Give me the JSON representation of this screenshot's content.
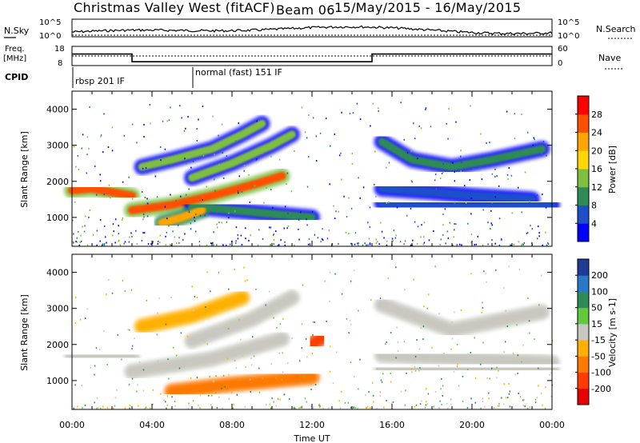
{
  "header": {
    "station": "Christmas Valley West (fitACF)",
    "beam": "Beam 06",
    "date_range": "15/May/2015 - 16/May/2015"
  },
  "left_labels": {
    "nsky": "N.Sky",
    "freq_line1": "Freq.",
    "freq_line2": "[MHz]",
    "cpid": "CPID"
  },
  "right_labels": {
    "nsearch": "N.Search",
    "nave": "Nave"
  },
  "noise_axis": {
    "left_ticks": [
      "10^5",
      "10^0"
    ],
    "right_ticks": [
      "10^5",
      "10^0"
    ]
  },
  "freq_axis": {
    "left_ticks": [
      "18",
      "8"
    ],
    "right_ticks": [
      "60",
      "0"
    ]
  },
  "cpid_segments": [
    {
      "label": "rbsp 201 IF",
      "start_hour": 0
    },
    {
      "label": "normal (fast) 151 IF",
      "start_hour": 6
    }
  ],
  "panels": {
    "range_label": "Slant Range [km]",
    "range_ticks": [
      "1000",
      "2000",
      "3000",
      "4000"
    ],
    "xlabel": "Time UT",
    "x_ticks": [
      "00:00",
      "04:00",
      "08:00",
      "12:00",
      "16:00",
      "20:00",
      "00:00"
    ]
  },
  "power_scale": {
    "label": "Power [dB]",
    "ticks": [
      "4",
      "8",
      "12",
      "16",
      "20",
      "24",
      "28"
    ],
    "colors": [
      "#0000ff",
      "#1f4fc8",
      "#2e8b57",
      "#7fbf3f",
      "#ffd700",
      "#ffa500",
      "#ff5000",
      "#ff0000"
    ]
  },
  "velocity_scale": {
    "label": "Velocity [m s-1]",
    "ticks": [
      "200",
      "100",
      "50",
      "15",
      "-15",
      "-50",
      "-100",
      "-200"
    ],
    "colors": [
      "#1e3c96",
      "#2878c8",
      "#2e8b57",
      "#64c83c",
      "#c8c8c0",
      "#ffb000",
      "#ff7800",
      "#ff3c00",
      "#e60000"
    ]
  },
  "chart_data": {
    "type": "heatmap",
    "x_range_hours": [
      0,
      24
    ],
    "y_range_km": [
      200,
      4500
    ],
    "freq_mhz": [
      {
        "start": 0,
        "end": 3,
        "value": 14
      },
      {
        "start": 3,
        "end": 15,
        "value": 10
      },
      {
        "start": 15,
        "end": 24,
        "value": 14
      }
    ],
    "power_bands": [
      {
        "points": [
          [
            0,
            1750
          ],
          [
            1,
            1800
          ],
          [
            2,
            1700
          ],
          [
            3,
            1600
          ]
        ],
        "power": 26
      },
      {
        "points": [
          [
            3,
            1200
          ],
          [
            5,
            1350
          ],
          [
            7,
            1600
          ],
          [
            9,
            1900
          ],
          [
            10.5,
            2150
          ]
        ],
        "power": 24
      },
      {
        "points": [
          [
            3.5,
            2400
          ],
          [
            5,
            2600
          ],
          [
            7,
            2900
          ],
          [
            8.5,
            3300
          ],
          [
            9.5,
            3600
          ]
        ],
        "power": 14
      },
      {
        "points": [
          [
            6,
            2100
          ],
          [
            8,
            2500
          ],
          [
            10,
            3000
          ],
          [
            11,
            3300
          ]
        ],
        "power": 12
      },
      {
        "points": [
          [
            6,
            1300
          ],
          [
            8,
            1200
          ],
          [
            10,
            1100
          ],
          [
            12,
            1000
          ]
        ],
        "power": 10
      },
      {
        "points": [
          [
            4.5,
            850
          ],
          [
            5.5,
            1000
          ],
          [
            6.5,
            1200
          ]
        ],
        "power": 20
      },
      {
        "points": [
          [
            15.5,
            3100
          ],
          [
            17,
            2600
          ],
          [
            19,
            2400
          ],
          [
            21,
            2600
          ],
          [
            23.5,
            2900
          ]
        ],
        "power": 8
      },
      {
        "points": [
          [
            15.5,
            1800
          ],
          [
            18,
            1700
          ],
          [
            20,
            1600
          ],
          [
            23,
            1500
          ]
        ],
        "power": 6
      },
      {
        "points": [
          [
            15.5,
            1400
          ],
          [
            18,
            1300
          ],
          [
            21,
            1300
          ],
          [
            24,
            1350
          ]
        ],
        "power": 6
      }
    ],
    "velocity_bands": [
      {
        "points": [
          [
            0,
            1700
          ],
          [
            3,
            1650
          ]
        ],
        "velocity": 0
      },
      {
        "points": [
          [
            3,
            1250
          ],
          [
            7,
            1600
          ],
          [
            10.5,
            2150
          ]
        ],
        "velocity": 0
      },
      {
        "points": [
          [
            3.5,
            2500
          ],
          [
            6,
            2800
          ],
          [
            8.5,
            3300
          ]
        ],
        "velocity": -40
      },
      {
        "points": [
          [
            6,
            2100
          ],
          [
            9,
            2700
          ],
          [
            11,
            3300
          ]
        ],
        "velocity": 0
      },
      {
        "points": [
          [
            5,
            700
          ],
          [
            8,
            900
          ],
          [
            11,
            1050
          ],
          [
            12,
            1100
          ]
        ],
        "velocity": -60
      },
      {
        "points": [
          [
            12,
            2000
          ],
          [
            12.5,
            2200
          ]
        ],
        "velocity": -150
      },
      {
        "points": [
          [
            15.5,
            3100
          ],
          [
            19,
            2400
          ],
          [
            23.5,
            2900
          ]
        ],
        "velocity": 0
      },
      {
        "points": [
          [
            15.5,
            1700
          ],
          [
            20,
            1600
          ],
          [
            24,
            1500
          ]
        ],
        "velocity": 0
      },
      {
        "points": [
          [
            15.5,
            1350
          ],
          [
            20,
            1300
          ],
          [
            24,
            1350
          ]
        ],
        "velocity": 0
      }
    ]
  }
}
